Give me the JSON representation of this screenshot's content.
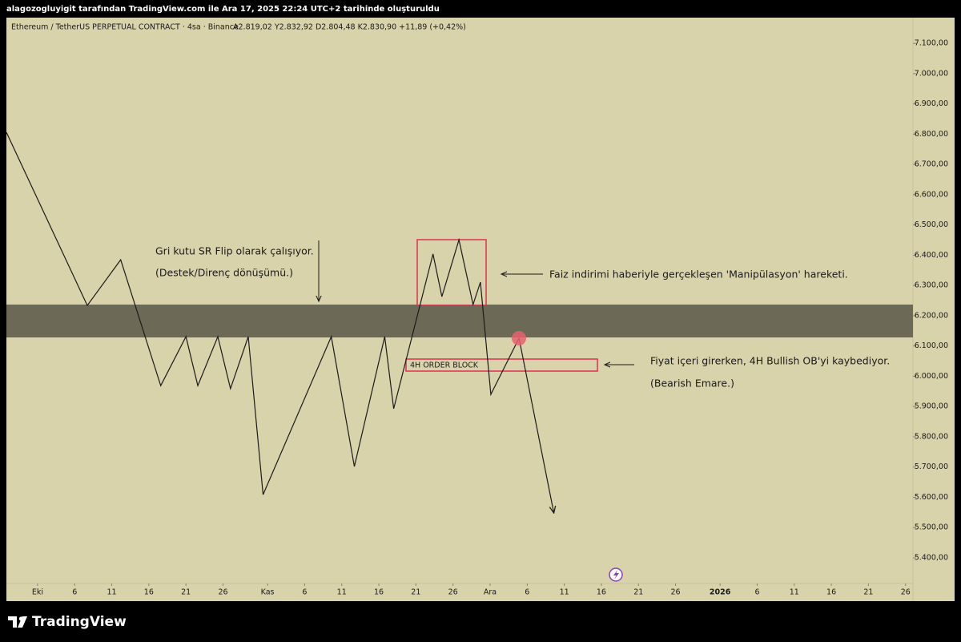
{
  "header": "alagozogluyigit tarafından TradingView.com ile Ara 17, 2025 22:24 UTC+2 tarihinde oluşturuldu",
  "footer": "TradingView",
  "chart_data": {
    "type": "line",
    "title": "Ethereum / TetherUS PERPETUAL CONTRACT · 4sa · Binance",
    "subtitle": "A2.819,02  Y2.832,92  D2.804,48  K2.830,90  +11,89 (+0,42%)",
    "annotations": [
      "Gri kutu SR Flip olarak çalışıyor.",
      "(Destek/Direnç dönüşümü.)",
      "Faiz indirimi haberiyle gerçekleşen 'Manipülasyon' hareketi.",
      "Fiyat içeri girerken, 4H Bullish OB'yi kaybediyor.",
      "(Bearish Emare.)",
      "4H ORDER BLOCK"
    ],
    "color": "#1a1a1a",
    "x": [
      -4.2,
      6.7,
      11.2,
      16.6,
      20.0,
      21.6,
      24.3,
      26.0,
      28.4,
      30.4,
      39.6,
      42.7,
      46.8,
      48.0,
      53.3,
      54.5,
      56.8,
      58.7,
      59.7,
      61.1,
      64.9,
      69.6
    ],
    "values": [
      6806,
      6234,
      6385,
      5969,
      6131,
      5969,
      6131,
      5959,
      6131,
      5609,
      6131,
      5702,
      6131,
      5893,
      6404,
      6263,
      6451,
      6237,
      6311,
      5940,
      6126,
      5548
    ],
    "xlim": [
      -4.2,
      118
    ],
    "ylim": [
      5257,
      7185
    ],
    "xticks": [
      {
        "value": 0,
        "label": "Eki"
      },
      {
        "value": 5,
        "label": "6"
      },
      {
        "value": 10,
        "label": "11"
      },
      {
        "value": 15,
        "label": "16"
      },
      {
        "value": 20,
        "label": "21"
      },
      {
        "value": 25,
        "label": "26"
      },
      {
        "value": 31,
        "label": "Kas"
      },
      {
        "value": 36,
        "label": "6"
      },
      {
        "value": 41,
        "label": "11"
      },
      {
        "value": 46,
        "label": "16"
      },
      {
        "value": 51,
        "label": "21"
      },
      {
        "value": 56,
        "label": "26"
      },
      {
        "value": 61,
        "label": "Ara"
      },
      {
        "value": 66,
        "label": "6"
      },
      {
        "value": 71,
        "label": "11"
      },
      {
        "value": 76,
        "label": "16"
      },
      {
        "value": 81,
        "label": "21"
      },
      {
        "value": 86,
        "label": "26"
      },
      {
        "value": 92,
        "label": "2026"
      },
      {
        "value": 97,
        "label": "6"
      },
      {
        "value": 102,
        "label": "11"
      },
      {
        "value": 107,
        "label": "16"
      },
      {
        "value": 112,
        "label": "21"
      },
      {
        "value": 117,
        "label": "26"
      }
    ],
    "yticks": [
      {
        "value": 5400,
        "label": "5.400,00"
      },
      {
        "value": 5500,
        "label": "5.500,00"
      },
      {
        "value": 5600,
        "label": "5.600,00"
      },
      {
        "value": 5700,
        "label": "5.700,00"
      },
      {
        "value": 5800,
        "label": "5.800,00"
      },
      {
        "value": 5900,
        "label": "5.900,00"
      },
      {
        "value": 6000,
        "label": "6.000,00"
      },
      {
        "value": 6100,
        "label": "6.100,00"
      },
      {
        "value": 6200,
        "label": "6.200,00"
      },
      {
        "value": 6300,
        "label": "6.300,00"
      },
      {
        "value": 6400,
        "label": "6.400,00"
      },
      {
        "value": 6500,
        "label": "6.500,00"
      },
      {
        "value": 6600,
        "label": "6.600,00"
      },
      {
        "value": 6700,
        "label": "6.700,00"
      },
      {
        "value": 6800,
        "label": "6.800,00"
      },
      {
        "value": 6900,
        "label": "6.900,00"
      },
      {
        "value": 7000,
        "label": "7.000,00"
      },
      {
        "value": 7100,
        "label": "7.100,00"
      }
    ]
  }
}
